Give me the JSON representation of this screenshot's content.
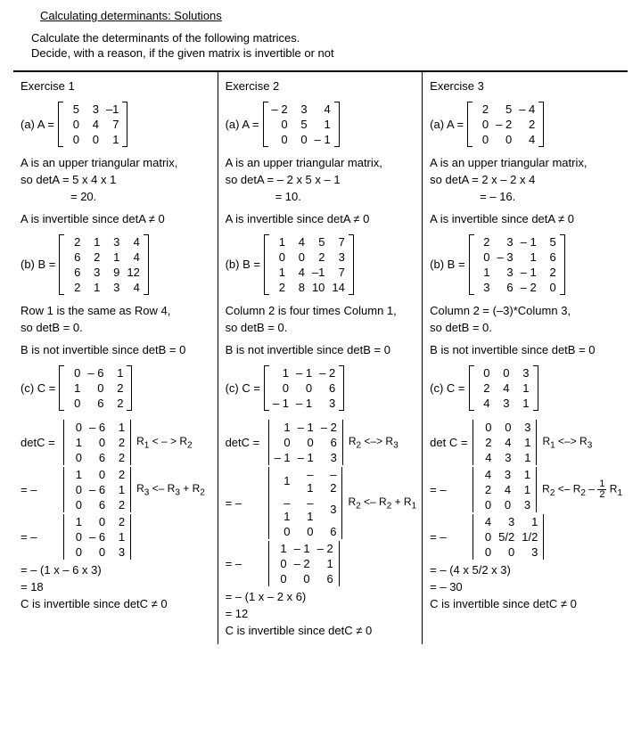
{
  "title": "Calculating determinants: Solutions",
  "intro1": "Calculate the determinants of the following matrices.",
  "intro2": "Decide, with a reason, if the given matrix is invertible or not",
  "headers": {
    "e1": "Exercise 1",
    "e2": "Exercise 2",
    "e3": "Exercise 3"
  },
  "labels": {
    "a": "(a)   A =",
    "b": "(b)   B =",
    "c": "(c)   C =",
    "detc": "detC =",
    "detcs": "det C =",
    "eqm": "=  –",
    "eq": "="
  },
  "matA": {
    "e1": [
      [
        "5",
        "3",
        "–1"
      ],
      [
        "0",
        "4",
        "7"
      ],
      [
        "0",
        "0",
        "1"
      ]
    ],
    "e2": [
      [
        "– 2",
        "3",
        "4"
      ],
      [
        "0",
        "5",
        "1"
      ],
      [
        "0",
        "0",
        "– 1"
      ]
    ],
    "e3": [
      [
        "2",
        "5",
        "– 4"
      ],
      [
        "0",
        "– 2",
        "2"
      ],
      [
        "0",
        "0",
        "4"
      ]
    ]
  },
  "txtA": {
    "e1": {
      "l1": "A is an upper triangular matrix,",
      "l2": "so detA = 5 x 4 x 1",
      "l3": "= 20.",
      "l4": "A is invertible since detA ≠ 0"
    },
    "e2": {
      "l1": "A is an upper triangular matrix,",
      "l2": "so detA = – 2 x 5 x – 1",
      "l3": "= 10.",
      "l4": "A is invertible since detA ≠ 0"
    },
    "e3": {
      "l1": "A is an upper triangular matrix,",
      "l2": "so detA = 2 x – 2 x 4",
      "l3": "= – 16.",
      "l4": "A is invertible since detA ≠ 0"
    }
  },
  "matB": {
    "e1": [
      [
        "2",
        "1",
        "3",
        "4"
      ],
      [
        "6",
        "2",
        "1",
        "4"
      ],
      [
        "6",
        "3",
        "9",
        "12"
      ],
      [
        "2",
        "1",
        "3",
        "4"
      ]
    ],
    "e2": [
      [
        "1",
        "4",
        "5",
        "7"
      ],
      [
        "0",
        "0",
        "2",
        "3"
      ],
      [
        "1",
        "4",
        "–1",
        "7"
      ],
      [
        "2",
        "8",
        "10",
        "14"
      ]
    ],
    "e3": [
      [
        "2",
        "3",
        "– 1",
        "5"
      ],
      [
        "0",
        "– 3",
        "1",
        "6"
      ],
      [
        "1",
        "3",
        "– 1",
        "2"
      ],
      [
        "3",
        "6",
        "– 2",
        "0"
      ]
    ]
  },
  "txtB": {
    "e1": {
      "l1": "Row 1 is the same as Row 4,",
      "l2": "so detB = 0.",
      "l3": "B is not invertible since detB = 0"
    },
    "e2": {
      "l1": "Column 2 is four times Column 1,",
      "l2": "so detB = 0.",
      "l3": "B is not invertible since detB = 0"
    },
    "e3": {
      "l1": "Column 2 = (–3)*Column 3,",
      "l2": "so detB = 0.",
      "l3": "B is not invertible since detB = 0"
    }
  },
  "matC": {
    "e1": [
      [
        "0",
        "– 6",
        "1"
      ],
      [
        "1",
        "0",
        "2"
      ],
      [
        "0",
        "6",
        "2"
      ]
    ],
    "e2": [
      [
        "1",
        "– 1",
        "– 2"
      ],
      [
        "0",
        "0",
        "6"
      ],
      [
        "– 1",
        "– 1",
        "3"
      ]
    ],
    "e3": [
      [
        "0",
        "0",
        "3"
      ],
      [
        "2",
        "4",
        "1"
      ],
      [
        "4",
        "3",
        "1"
      ]
    ]
  },
  "stepsC": {
    "e1": {
      "s1": {
        "m": [
          [
            "0",
            "– 6",
            "1"
          ],
          [
            "1",
            "0",
            "2"
          ],
          [
            "0",
            "6",
            "2"
          ]
        ],
        "op": "R₁ < – > R₂"
      },
      "s2": {
        "m": [
          [
            "1",
            "0",
            "2"
          ],
          [
            "0",
            "– 6",
            "1"
          ],
          [
            "0",
            "6",
            "2"
          ]
        ],
        "op": "R₃ <– R₃ + R₂"
      },
      "s3": {
        "m": [
          [
            "1",
            "0",
            "2"
          ],
          [
            "0",
            "– 6",
            "1"
          ],
          [
            "0",
            "0",
            "3"
          ]
        ]
      },
      "r1": "= – (1 x – 6 x 3)",
      "r2": "= 18",
      "r3": "C is invertible since detC ≠ 0"
    },
    "e2": {
      "s1": {
        "m": [
          [
            "1",
            "– 1",
            "– 2"
          ],
          [
            "0",
            "0",
            "6"
          ],
          [
            "– 1",
            "– 1",
            "3"
          ]
        ],
        "op": "R₂ <–> R₃"
      },
      "s2": {
        "m": [
          [
            "1",
            "– 1",
            "– 2"
          ],
          [
            "– 1",
            "– 1",
            "3"
          ],
          [
            "0",
            "0",
            "6"
          ]
        ],
        "op": "R₂ <– R₂ + R₁"
      },
      "s3": {
        "m": [
          [
            "1",
            "– 1",
            "– 2"
          ],
          [
            "0",
            "– 2",
            "1"
          ],
          [
            "0",
            "0",
            "6"
          ]
        ]
      },
      "r1": "= – (1 x – 2 x 6)",
      "r2": "= 12",
      "r3": "C is invertible since detC ≠ 0"
    },
    "e3": {
      "s1": {
        "m": [
          [
            "0",
            "0",
            "3"
          ],
          [
            "2",
            "4",
            "1"
          ],
          [
            "4",
            "3",
            "1"
          ]
        ],
        "op": "R₁ <–> R₃"
      },
      "s2": {
        "m": [
          [
            "4",
            "3",
            "1"
          ],
          [
            "2",
            "4",
            "1"
          ],
          [
            "0",
            "0",
            "3"
          ]
        ],
        "ophtml": "R<sub>2</sub> &lt;– R<sub>2</sub> – <span class='frac'><span class='fn'>1</span><span class='fd'>2</span></span> R<sub>1</sub>"
      },
      "s3": {
        "m": [
          [
            "4",
            "3",
            "1"
          ],
          [
            "0",
            "5/2",
            "1/2"
          ],
          [
            "0",
            "0",
            "3"
          ]
        ]
      },
      "r1": "= – (4 x 5/2 x 3)",
      "r2": "= – 30",
      "r3": "C is invertible since detC ≠ 0"
    }
  }
}
